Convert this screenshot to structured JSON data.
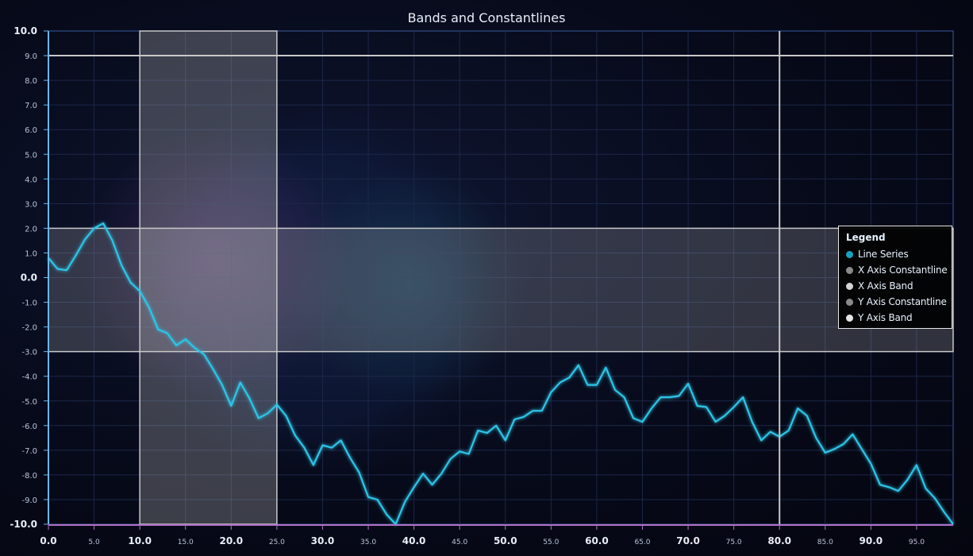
{
  "chart_data": {
    "type": "line",
    "title": "Bands and Constantlines",
    "xlim": [
      0,
      99
    ],
    "ylim": [
      -10,
      10
    ],
    "x_ticks": [
      "0.0",
      "5.0",
      "10.0",
      "15.0",
      "20.0",
      "25.0",
      "30.0",
      "35.0",
      "40.0",
      "45.0",
      "50.0",
      "55.0",
      "60.0",
      "65.0",
      "70.0",
      "75.0",
      "80.0",
      "85.0",
      "90.0",
      "95.0"
    ],
    "x_tick_values": [
      0,
      5,
      10,
      15,
      20,
      25,
      30,
      35,
      40,
      45,
      50,
      55,
      60,
      65,
      70,
      75,
      80,
      85,
      90,
      95
    ],
    "y_ticks": [
      "10.0",
      "9.0",
      "8.0",
      "7.0",
      "6.0",
      "5.0",
      "4.0",
      "3.0",
      "2.0",
      "1.0",
      "0.0",
      "-1.0",
      "-2.0",
      "-3.0",
      "-4.0",
      "-5.0",
      "-6.0",
      "-7.0",
      "-8.0",
      "-9.0",
      "-10.0"
    ],
    "y_tick_values": [
      10,
      9,
      8,
      7,
      6,
      5,
      4,
      3,
      2,
      1,
      0,
      -1,
      -2,
      -3,
      -4,
      -5,
      -6,
      -7,
      -8,
      -9,
      -10
    ],
    "grid": true,
    "x_axis_constantline": 80,
    "x_axis_band": [
      10,
      25
    ],
    "y_axis_constantline": 9,
    "y_axis_band": [
      -3,
      2
    ],
    "legend": {
      "title": "Legend",
      "placement": "right",
      "items": [
        {
          "label": "Line Series",
          "color": "#16a3c4"
        },
        {
          "label": "X Axis Constantline",
          "color": "#8a8a8a"
        },
        {
          "label": "X Axis Band",
          "color": "#d4d4d4"
        },
        {
          "label": "Y Axis Constantline",
          "color": "#8a8a8a"
        },
        {
          "label": "Y Axis Band",
          "color": "#e6e6e6"
        }
      ]
    },
    "series": [
      {
        "color": "#2ec4e6",
        "x": [
          0,
          1,
          2,
          3,
          4,
          5,
          6,
          7,
          8,
          9,
          10,
          11,
          12,
          13,
          14,
          15,
          16,
          17,
          18,
          19,
          20,
          21,
          22,
          23,
          24,
          25,
          26,
          27,
          28,
          29,
          30,
          31,
          32,
          33,
          34,
          35,
          36,
          37,
          38,
          39,
          40,
          41,
          42,
          43,
          44,
          45,
          46,
          47,
          48,
          49,
          50,
          51,
          52,
          53,
          54,
          55,
          56,
          57,
          58,
          59,
          60,
          61,
          62,
          63,
          64,
          65,
          66,
          67,
          68,
          69,
          70,
          71,
          72,
          73,
          74,
          75,
          76,
          77,
          78,
          79,
          80,
          81,
          82,
          83,
          84,
          85,
          86,
          87,
          88,
          89,
          90,
          91,
          92,
          93,
          94,
          95,
          96,
          97,
          98,
          99
        ],
        "values": [
          0.8,
          0.35,
          0.3,
          0.9,
          1.55,
          2.0,
          2.2,
          1.5,
          0.5,
          -0.2,
          -0.55,
          -1.2,
          -2.1,
          -2.25,
          -2.75,
          -2.5,
          -2.85,
          -3.1,
          -3.7,
          -4.35,
          -5.2,
          -4.25,
          -4.9,
          -5.7,
          -5.5,
          -5.15,
          -5.6,
          -6.4,
          -6.9,
          -7.6,
          -6.8,
          -6.9,
          -6.6,
          -7.3,
          -7.9,
          -8.9,
          -9.0,
          -9.6,
          -10.0,
          -9.1,
          -8.5,
          -7.95,
          -8.4,
          -7.95,
          -7.35,
          -7.05,
          -7.15,
          -6.2,
          -6.3,
          -6.0,
          -6.6,
          -5.75,
          -5.65,
          -5.4,
          -5.4,
          -4.65,
          -4.25,
          -4.05,
          -3.55,
          -4.35,
          -4.35,
          -3.65,
          -4.55,
          -4.85,
          -5.7,
          -5.85,
          -5.3,
          -4.85,
          -4.85,
          -4.8,
          -4.3,
          -5.2,
          -5.25,
          -5.85,
          -5.6,
          -5.25,
          -4.85,
          -5.85,
          -6.6,
          -6.25,
          -6.45,
          -6.2,
          -5.3,
          -5.6,
          -6.5,
          -7.1,
          -6.95,
          -6.75,
          -6.35,
          -6.95,
          -7.55,
          -8.4,
          -8.5,
          -8.65,
          -8.2,
          -7.6,
          -8.55,
          -8.95,
          -9.5,
          -10.0
        ]
      }
    ]
  }
}
